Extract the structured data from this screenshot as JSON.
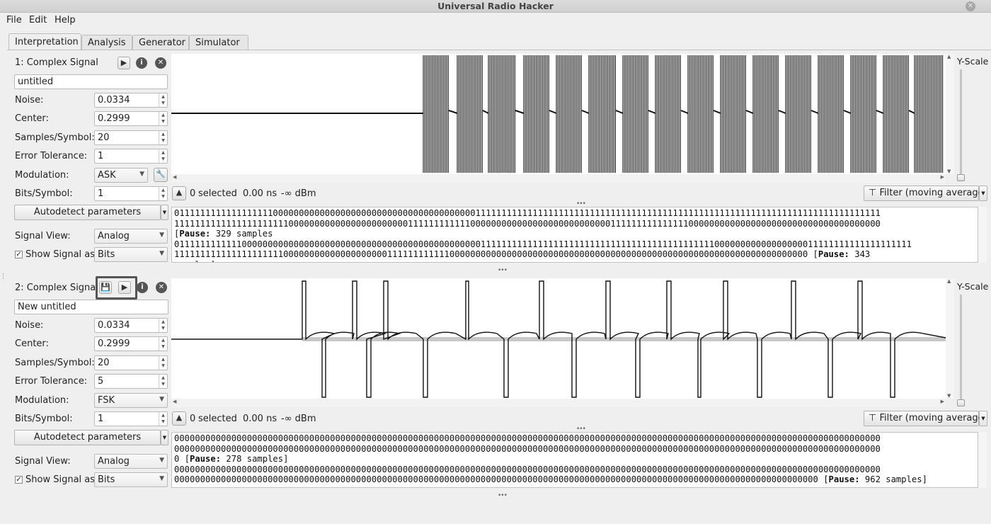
{
  "window": {
    "title": "Universal Radio Hacker"
  },
  "menu": [
    "File",
    "Edit",
    "Help"
  ],
  "tabs": [
    "Interpretation",
    "Analysis",
    "Generator",
    "Simulator"
  ],
  "signals": [
    {
      "header": "1:  Complex Signal",
      "name": "untitled",
      "params": {
        "noise": "0.0334",
        "center": "0.2999",
        "samples_per_symbol": "20",
        "error_tolerance": "1",
        "modulation": "ASK",
        "bits_per_symbol": "1"
      },
      "signal_view": "Analog",
      "show_signal_as": "Bits",
      "status": {
        "selected": "0",
        "selected_label": "selected",
        "duration": "0.00 ns",
        "power": "-∞ dBm"
      },
      "filter": "Filter (moving average)",
      "yscale": "Y-Scale",
      "output_lines": [
        {
          "t": "0111111111111111111000000000000000000000000000000000000000111111111111111111111111111111111111111111111111111111111111111111111111111111"
        },
        {
          "t": "1111111111111111111111000000000000000000000001111111111110000000000000000000000000001111111111111110000000000000000000000000000000000000"
        },
        {
          "t": "",
          "pause": "329 samples",
          "post": ""
        },
        {
          "t": "0111111111111000000000000000000000000000000000000000000000011111111111111111111111111111111111111111111100000000000000000011111111111111111111"
        },
        {
          "t": "11111111111111111111100000000000000000000111111111111000000000000000000000000000000000000000000000000000000000000000000000 ",
          "pause": "343",
          "post": ""
        },
        {
          "t": "samples]"
        }
      ]
    },
    {
      "header": "2:  Complex Signal",
      "name": "New untitled",
      "params": {
        "noise": "0.0334",
        "center": "0.2999",
        "samples_per_symbol": "20",
        "error_tolerance": "5",
        "modulation": "FSK",
        "bits_per_symbol": "1"
      },
      "signal_view": "Analog",
      "show_signal_as": "Bits",
      "status": {
        "selected": "0",
        "selected_label": "selected",
        "duration": "0.00 ns",
        "power": "-∞ dBm"
      },
      "filter": "Filter (moving average)",
      "yscale": "Y-Scale",
      "output_lines": [
        {
          "t": "0000000000000000000000000000000000000000000000000000000000000000000000000000000000000000000000000000000000000000000000000000000000000000"
        },
        {
          "t": "0000000000000000000000000000000000000000000000000000000000000000000000000000000000000000000000000000000000000000000000000000000000000000"
        },
        {
          "t": "0 ",
          "pause": "278 samples",
          "post": "]"
        },
        {
          "t": "0000000000000000000000000000000000000000000000000000000000000000000000000000000000000000000000000000000000000000000000000000000000000000"
        },
        {
          "t": "0000000000000000000000000000000000000000000000000000000000000000000000000000000000000000000000000000000000000000000000000000 ",
          "pause": "962 samples",
          "post": "]"
        }
      ]
    }
  ],
  "labels": {
    "noise": "Noise:",
    "center": "Center:",
    "samples_per_symbol": "Samples/Symbol:",
    "error_tolerance": "Error Tolerance:",
    "modulation": "Modulation:",
    "bits_per_symbol": "Bits/Symbol:",
    "autodetect": "Autodetect parameters",
    "signal_view": "Signal View:",
    "show_signal_as": "Show Signal as",
    "pause_word": "Pause:"
  }
}
